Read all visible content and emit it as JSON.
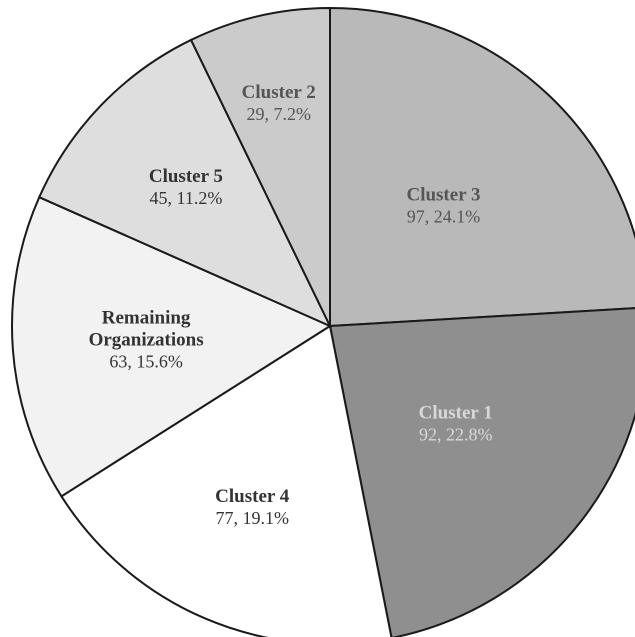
{
  "chart_data": {
    "type": "pie",
    "start_angle_deg": 0,
    "direction": "clockwise",
    "slices": [
      {
        "name": "Cluster 3",
        "name_lines": [
          "Cluster 3"
        ],
        "value": 97,
        "percent": "24.1%",
        "value_label": "97, 24.1%",
        "color": "#b9b9b9",
        "label_color": "#555555"
      },
      {
        "name": "Cluster 1",
        "name_lines": [
          "Cluster 1"
        ],
        "value": 92,
        "percent": "22.8%",
        "value_label": "92, 22.8%",
        "color": "#8f8f8f",
        "label_color": "#d9d9d9"
      },
      {
        "name": "Cluster 4",
        "name_lines": [
          "Cluster 4"
        ],
        "value": 77,
        "percent": "19.1%",
        "value_label": "77, 19.1%",
        "color": "#ffffff",
        "label_color": "#333333"
      },
      {
        "name": "Remaining Organizations",
        "name_lines": [
          "Remaining",
          "Organizations"
        ],
        "value": 63,
        "percent": "15.6%",
        "value_label": "63, 15.6%",
        "color": "#f2f2f2",
        "label_color": "#333333"
      },
      {
        "name": "Cluster 5",
        "name_lines": [
          "Cluster 5"
        ],
        "value": 45,
        "percent": "11.2%",
        "value_label": "45, 11.2%",
        "color": "#dedede",
        "label_color": "#333333"
      },
      {
        "name": "Cluster 2",
        "name_lines": [
          "Cluster 2"
        ],
        "value": 29,
        "percent": "7.2%",
        "value_label": "29, 7.2%",
        "color": "#cbcbcb",
        "label_color": "#555555"
      }
    ]
  }
}
